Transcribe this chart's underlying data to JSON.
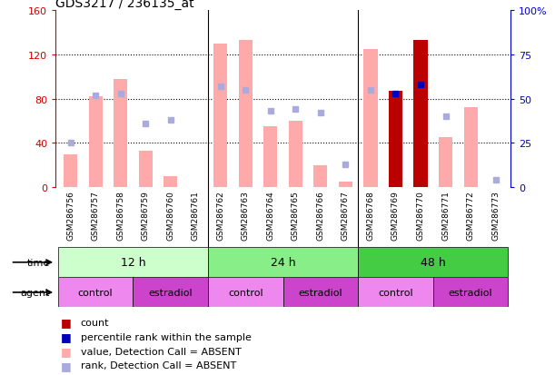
{
  "title": "GDS3217 / 236135_at",
  "samples": [
    "GSM286756",
    "GSM286757",
    "GSM286758",
    "GSM286759",
    "GSM286760",
    "GSM286761",
    "GSM286762",
    "GSM286763",
    "GSM286764",
    "GSM286765",
    "GSM286766",
    "GSM286767",
    "GSM286768",
    "GSM286769",
    "GSM286770",
    "GSM286771",
    "GSM286772",
    "GSM286773"
  ],
  "values_absent": [
    30,
    82,
    98,
    33,
    10,
    null,
    130,
    133,
    55,
    60,
    20,
    5,
    125,
    null,
    null,
    45,
    72,
    null
  ],
  "ranks_absent_pct": [
    25,
    52,
    53,
    36,
    38,
    null,
    57,
    55,
    43,
    44,
    42,
    13,
    55,
    null,
    null,
    40,
    null,
    4
  ],
  "counts": [
    null,
    null,
    null,
    null,
    null,
    null,
    null,
    null,
    null,
    null,
    null,
    null,
    null,
    87,
    133,
    null,
    null,
    null
  ],
  "percentile_ranks_pct": [
    null,
    null,
    null,
    null,
    null,
    null,
    null,
    null,
    null,
    null,
    null,
    null,
    null,
    53,
    58,
    null,
    null,
    null
  ],
  "ylim_left": [
    0,
    160
  ],
  "ylim_right": [
    0,
    100
  ],
  "yticks_left": [
    0,
    40,
    80,
    120,
    160
  ],
  "yticks_right": [
    0,
    25,
    50,
    75,
    100
  ],
  "ytick_labels_left": [
    "0",
    "40",
    "80",
    "120",
    "160"
  ],
  "ytick_labels_right": [
    "0",
    "25",
    "50",
    "75",
    "100%"
  ],
  "left_axis_color": "#cc0000",
  "right_axis_color": "#0000cc",
  "bar_absent_color": "#ffaaaa",
  "rank_absent_color": "#aaaadd",
  "bar_count_color": "#bb0000",
  "rank_present_color": "#0000bb",
  "time_groups": [
    {
      "label": "12 h",
      "start": 0,
      "end": 6,
      "color": "#ccffcc"
    },
    {
      "label": "24 h",
      "start": 6,
      "end": 12,
      "color": "#88ee88"
    },
    {
      "label": "48 h",
      "start": 12,
      "end": 18,
      "color": "#44cc44"
    }
  ],
  "agent_groups": [
    {
      "label": "control",
      "start": 0,
      "end": 3,
      "color": "#ee88ee"
    },
    {
      "label": "estradiol",
      "start": 3,
      "end": 6,
      "color": "#cc44cc"
    },
    {
      "label": "control",
      "start": 6,
      "end": 9,
      "color": "#ee88ee"
    },
    {
      "label": "estradiol",
      "start": 9,
      "end": 12,
      "color": "#cc44cc"
    },
    {
      "label": "control",
      "start": 12,
      "end": 15,
      "color": "#ee88ee"
    },
    {
      "label": "estradiol",
      "start": 15,
      "end": 18,
      "color": "#cc44cc"
    }
  ],
  "xtick_bg_color": "#cccccc",
  "legend_labels": [
    "count",
    "percentile rank within the sample",
    "value, Detection Call = ABSENT",
    "rank, Detection Call = ABSENT"
  ],
  "legend_colors": [
    "#bb0000",
    "#0000bb",
    "#ffaaaa",
    "#aaaadd"
  ]
}
